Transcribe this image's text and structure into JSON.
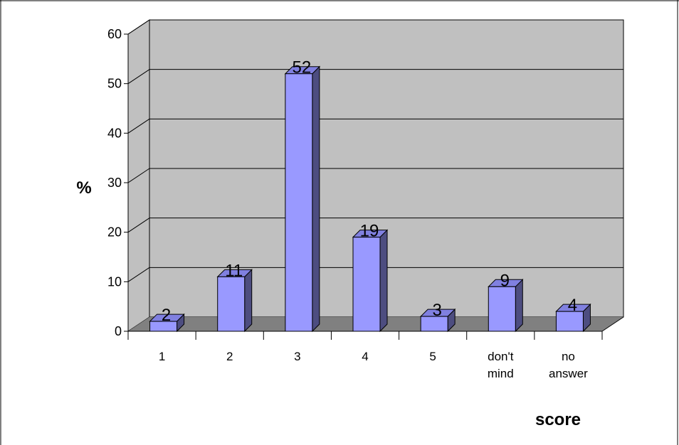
{
  "chart_data": {
    "type": "bar",
    "categories": [
      [
        "1"
      ],
      [
        "2"
      ],
      [
        "3"
      ],
      [
        "4"
      ],
      [
        "5"
      ],
      [
        "don't",
        "mind"
      ],
      [
        "no",
        "answer"
      ]
    ],
    "values": [
      2,
      11,
      52,
      19,
      3,
      9,
      4
    ],
    "data_labels": [
      "2",
      "11",
      "52",
      "19",
      "3",
      "9",
      "4"
    ],
    "yticks": [
      "0",
      "10",
      "20",
      "30",
      "40",
      "50",
      "60"
    ],
    "ylim": [
      0,
      60
    ],
    "ylabel": "%",
    "xlabel": "score",
    "title": "",
    "grid": true,
    "legend": "none",
    "colors": {
      "bar_front": "#9999ff",
      "bar_side": "#4d4d80",
      "bar_top": "#8080e0",
      "wall": "#c0c0c0",
      "floor": "#808080",
      "gridline": "#000000"
    }
  }
}
